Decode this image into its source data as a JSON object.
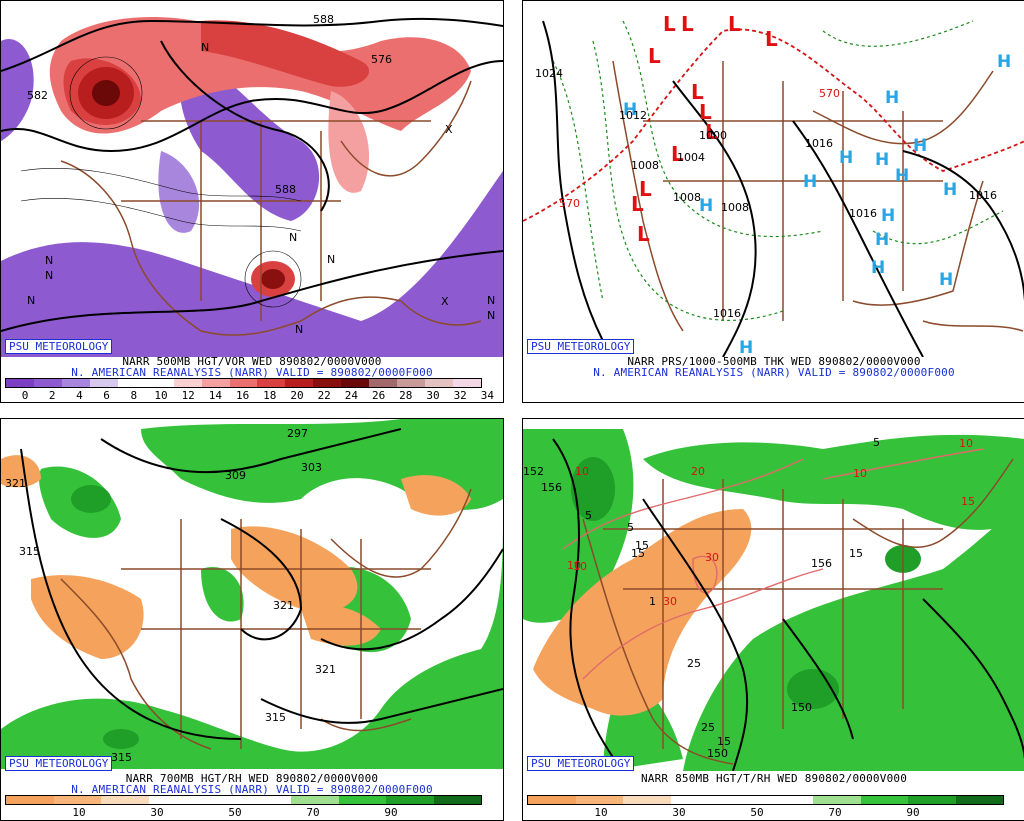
{
  "brand": "PSU METEOROLOGY",
  "panels": {
    "tl": {
      "line1": "NARR 500MB HGT/VOR WED 890802/0000V000",
      "line2": "N. AMERICAN REANALYSIS (NARR) VALID = 890802/0000F000",
      "scale_colors": [
        "#7b3fc4",
        "#8e5ad0",
        "#a886dd",
        "#d7c8ee",
        "#ffffff",
        "#ffffff",
        "#fbd0d0",
        "#f5a0a0",
        "#ec6f6f",
        "#d94040",
        "#b81e1e",
        "#8a0f0f",
        "#6b0808",
        "#a06a6a",
        "#c89a9a",
        "#e5c2c2",
        "#f2d8e6"
      ],
      "scale_ticks": [
        "0",
        "2",
        "4",
        "6",
        "8",
        "10",
        "12",
        "14",
        "16",
        "18",
        "20",
        "22",
        "24",
        "26",
        "28",
        "30",
        "32",
        "34"
      ],
      "labels": [
        "582",
        "588",
        "576",
        "588",
        "N",
        "N",
        "N",
        "N",
        "N",
        "N",
        "N",
        "N",
        "X",
        "X",
        "N"
      ]
    },
    "tr": {
      "line1": "NARR PRS/1000-500MB THK WED 890802/0000V000",
      "line2": "N. AMERICAN REANALYSIS (NARR) VALID = 890802/0000F000",
      "labels": [
        "1024",
        "1012",
        "1008",
        "1004",
        "1008",
        "1000",
        "1008",
        "1016",
        "1016",
        "1016",
        "1016",
        "570",
        "570",
        "L",
        "H"
      ]
    },
    "bl": {
      "line1": "NARR 700MB HGT/RH WED 890802/0000V000",
      "line2": "N. AMERICAN REANALYSIS (NARR) VALID = 890802/0000F000",
      "scale_colors": [
        "#f5a35c",
        "#f7b57a",
        "#fadbbb",
        "#ffffff",
        "#ffffff",
        "#ffffff",
        "#9ee08f",
        "#35c23a",
        "#1f9e28",
        "#116b18"
      ],
      "scale_ticks": [
        "10",
        "30",
        "50",
        "70",
        "90"
      ],
      "labels": [
        "297",
        "309",
        "303",
        "321",
        "315",
        "321",
        "315",
        "321",
        "315"
      ]
    },
    "br": {
      "line1": "NARR 850MB HGT/T/RH WED 890802/0000V000",
      "line2": "",
      "scale_ticks": [
        "10",
        "30",
        "50",
        "70",
        "90"
      ],
      "labels": [
        "152",
        "156",
        "5",
        "5",
        "15",
        "10",
        "10",
        "20",
        "30",
        "30",
        "10",
        "25",
        "25",
        "15",
        "15",
        "150",
        "150",
        "156",
        "5",
        "10",
        "10",
        "15",
        "15",
        "1"
      ]
    }
  }
}
